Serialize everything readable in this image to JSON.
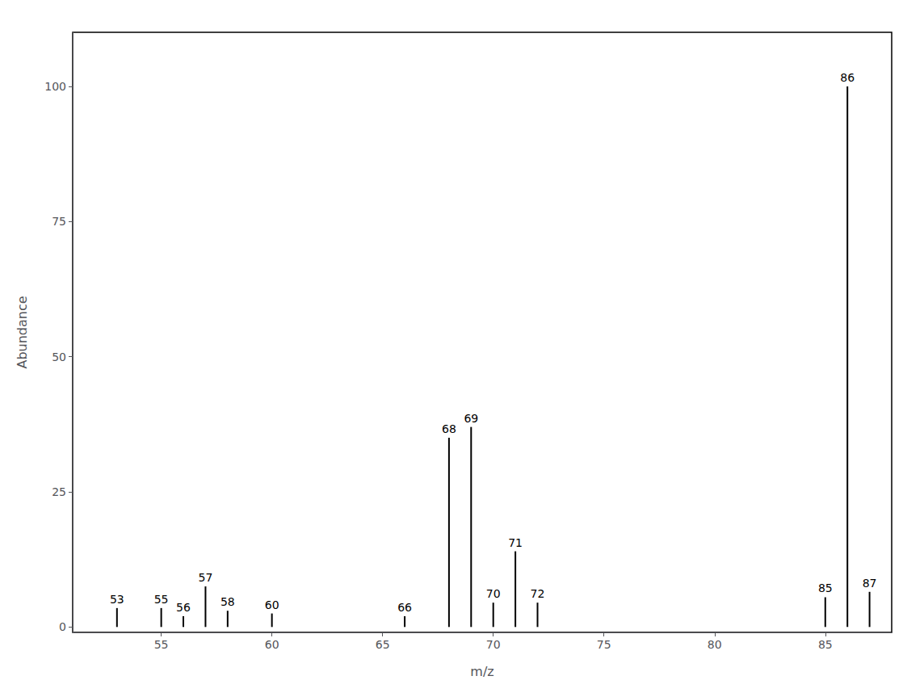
{
  "chart_data": {
    "type": "stem",
    "xlabel": "m/z",
    "ylabel": "Abundance",
    "x": [
      53,
      55,
      56,
      57,
      58,
      60,
      66,
      68,
      69,
      70,
      71,
      72,
      85,
      86,
      87
    ],
    "values": [
      3.5,
      3.5,
      2.0,
      7.5,
      3.0,
      2.5,
      2.0,
      35.0,
      37.0,
      4.5,
      14.0,
      4.5,
      5.5,
      100.0,
      6.5
    ],
    "annotations": [
      "53",
      "55",
      "56",
      "57",
      "58",
      "60",
      "66",
      "68",
      "69",
      "70",
      "71",
      "72",
      "85",
      "86",
      "87"
    ],
    "color": "#000000",
    "xlim": [
      51,
      88
    ],
    "ylim": [
      -1,
      110
    ],
    "xticks": [
      55,
      60,
      65,
      70,
      75,
      80,
      85
    ],
    "yticks": [
      0,
      25,
      50,
      75,
      100
    ],
    "grid": false
  }
}
